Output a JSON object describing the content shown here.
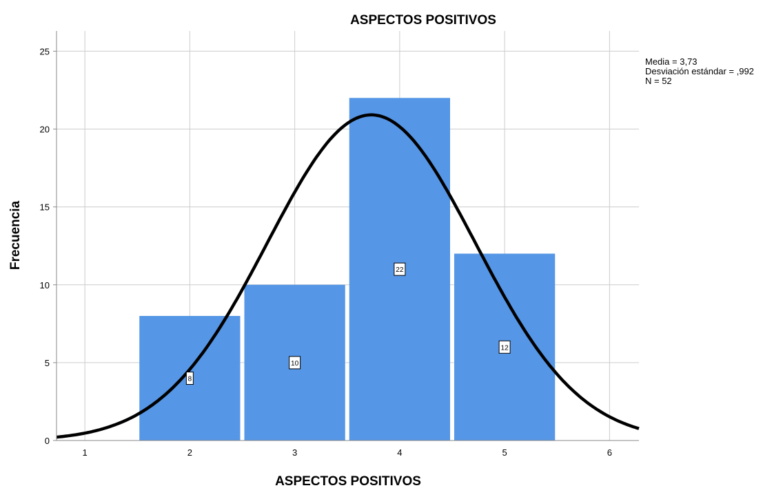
{
  "chart_data": {
    "type": "bar",
    "title": "ASPECTOS POSITIVOS",
    "xlabel": "ASPECTOS POSITIVOS",
    "ylabel": "Frecuencia",
    "categories": [
      "2",
      "3",
      "4",
      "5"
    ],
    "x_values": [
      2,
      3,
      4,
      5
    ],
    "values": [
      8,
      10,
      22,
      12
    ],
    "data_labels": [
      "8",
      "10",
      "22",
      "12"
    ],
    "x_ticks": [
      "1",
      "2",
      "3",
      "4",
      "5",
      "6"
    ],
    "y_ticks": [
      "0",
      "5",
      "10",
      "15",
      "20",
      "25"
    ],
    "xlim": [
      0.73,
      6.28
    ],
    "ylim": [
      0,
      26.3
    ],
    "grid": true,
    "overlay": {
      "type": "normal-curve",
      "mean": 3.73,
      "sd": 0.992,
      "n": 52,
      "bin_width": 1
    },
    "stats": [
      "Media = 3,73",
      "Desviación estándar = ,992",
      "N = 52"
    ],
    "stats_placement": "top-right",
    "colors": {
      "bar": "#5596e6",
      "curve": "#000000",
      "grid": "#cccccc",
      "axis": "#888888"
    }
  }
}
